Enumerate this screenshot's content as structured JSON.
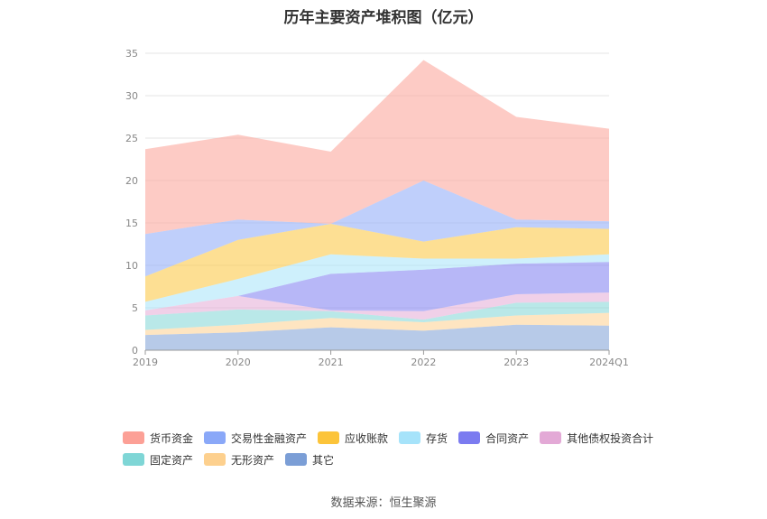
{
  "chart_data": {
    "type": "area",
    "stacked": true,
    "title": "历年主要资产堆积图（亿元）",
    "categories": [
      "2019",
      "2020",
      "2021",
      "2022",
      "2023",
      "2024Q1"
    ],
    "ylim": [
      0,
      35
    ],
    "yticks": [
      "0",
      "5",
      "10",
      "15",
      "20",
      "25",
      "30",
      "35"
    ],
    "grid": true,
    "legend_position": "bottom",
    "series": [
      {
        "name": "其它",
        "color": "#7b9ed6",
        "values": [
          1.8,
          2.1,
          2.7,
          2.3,
          3.0,
          2.9
        ]
      },
      {
        "name": "无形资产",
        "color": "#fdd08e",
        "values": [
          0.6,
          0.9,
          1.1,
          1.0,
          1.1,
          1.5
        ]
      },
      {
        "name": "固定资产",
        "color": "#7fd6d6",
        "values": [
          1.7,
          1.8,
          0.8,
          0.3,
          1.5,
          1.3
        ]
      },
      {
        "name": "其他债权投资合计",
        "color": "#e3a9d6",
        "values": [
          0.6,
          1.6,
          0.1,
          1.0,
          1.0,
          1.1
        ]
      },
      {
        "name": "合同资产",
        "color": "#7b7bf0",
        "values": [
          0.0,
          0.0,
          4.3,
          4.9,
          3.6,
          3.6
        ]
      },
      {
        "name": "存货",
        "color": "#a6e3fa",
        "values": [
          1.0,
          2.0,
          2.3,
          1.3,
          0.6,
          0.9
        ]
      },
      {
        "name": "应收账款",
        "color": "#fcc43a",
        "values": [
          3.0,
          4.6,
          3.6,
          2.0,
          3.7,
          3.0
        ]
      },
      {
        "name": "交易性金融资产",
        "color": "#8aa8f8",
        "values": [
          5.0,
          2.4,
          0.0,
          7.2,
          0.9,
          0.9
        ]
      },
      {
        "name": "货币资金",
        "color": "#fca096",
        "values": [
          10.0,
          10.0,
          8.5,
          14.2,
          12.1,
          10.9
        ]
      }
    ]
  },
  "legend": {
    "row1": [
      {
        "name": "货币资金",
        "color": "#fca096"
      },
      {
        "name": "交易性金融资产",
        "color": "#8aa8f8"
      },
      {
        "name": "应收账款",
        "color": "#fcc43a"
      },
      {
        "name": "存货",
        "color": "#a6e3fa"
      },
      {
        "name": "合同资产",
        "color": "#7b7bf0"
      },
      {
        "name": "其他债权投资合计",
        "color": "#e3a9d6"
      }
    ],
    "row2": [
      {
        "name": "固定资产",
        "color": "#7fd6d6"
      },
      {
        "name": "无形资产",
        "color": "#fdd08e"
      },
      {
        "name": "其它",
        "color": "#7b9ed6"
      }
    ]
  },
  "source": "数据来源：恒生聚源"
}
